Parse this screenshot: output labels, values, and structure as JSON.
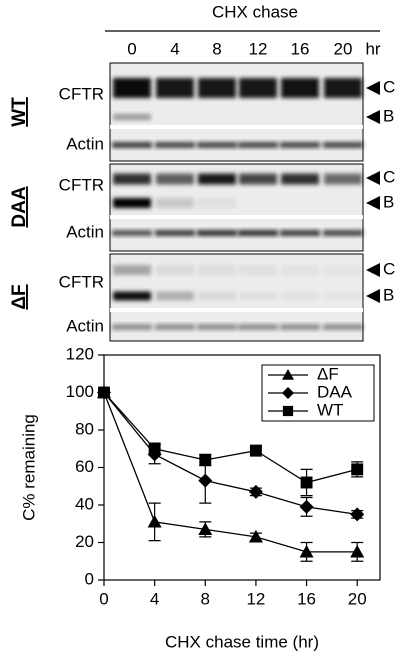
{
  "blot": {
    "title": "CHX chase",
    "timepoints": [
      "0",
      "4",
      "8",
      "12",
      "16",
      "20"
    ],
    "unit": "hr",
    "panels": [
      {
        "label": "WT",
        "rows": [
          "CFTR",
          "Actin"
        ],
        "bands": [
          "C",
          "B"
        ]
      },
      {
        "label": "DAA",
        "rows": [
          "CFTR",
          "Actin"
        ],
        "bands": [
          "C",
          "B"
        ]
      },
      {
        "label": "ΔF",
        "rows": [
          "CFTR",
          "Actin"
        ],
        "bands": [
          "C",
          "B"
        ]
      }
    ]
  },
  "chart_data": {
    "type": "line",
    "x_label": "CHX chase time (hr)",
    "y_label": "C% remaining",
    "x": [
      0,
      4,
      8,
      12,
      16,
      20
    ],
    "xlim": [
      0,
      21.8
    ],
    "xticks": [
      0,
      4,
      8,
      12,
      16,
      20
    ],
    "ylim": [
      0,
      120
    ],
    "yticks": [
      0,
      20,
      40,
      60,
      80,
      100,
      120
    ],
    "legend": "upper right",
    "series": [
      {
        "name": "ΔF",
        "color": "#000000",
        "marker": "triangle",
        "values": [
          100,
          31,
          27,
          23,
          15,
          15
        ],
        "errors": [
          0,
          10,
          4,
          2,
          5,
          5
        ]
      },
      {
        "name": "DAA",
        "color": "#000000",
        "marker": "diamond",
        "values": [
          100,
          67,
          53,
          47,
          39,
          35
        ],
        "errors": [
          0,
          5,
          12,
          2,
          5,
          2
        ]
      },
      {
        "name": "WT",
        "color": "#000000",
        "marker": "square",
        "values": [
          100,
          70,
          64,
          69,
          52,
          59
        ],
        "errors": [
          0,
          3,
          3,
          2,
          7,
          4
        ]
      }
    ]
  }
}
